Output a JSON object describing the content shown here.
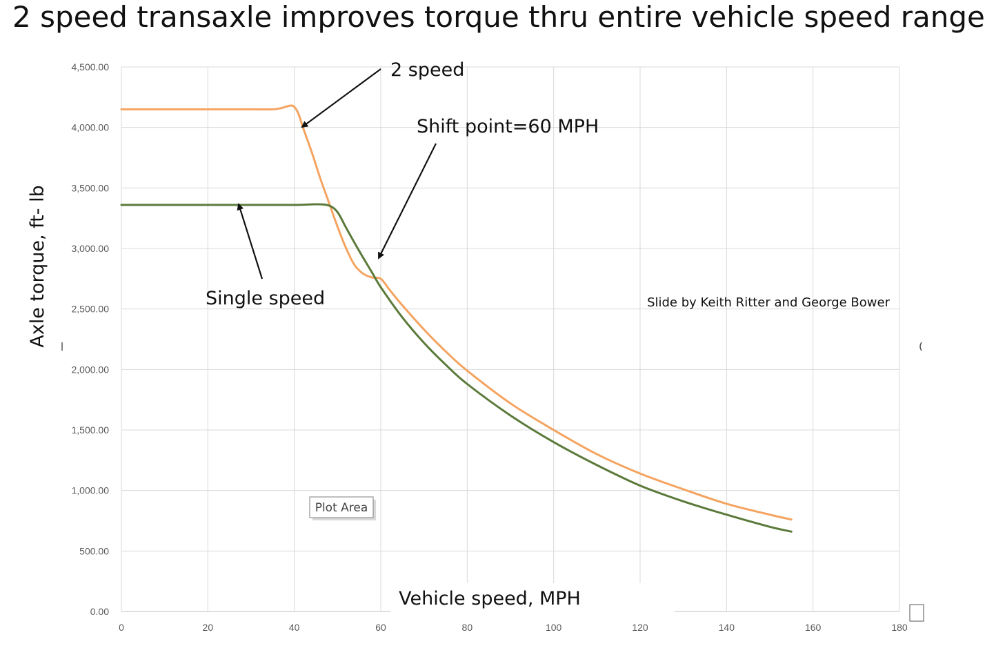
{
  "slide_title": "2 speed transaxle improves torque thru entire vehicle speed range",
  "chart_data": {
    "type": "line",
    "title": "",
    "xlabel": "Vehicle speed, MPH",
    "ylabel": "Axle torque, ft- lb",
    "xlim": [
      0,
      180
    ],
    "ylim": [
      0,
      4500
    ],
    "x_ticks": [
      "0",
      "20",
      "40",
      "60",
      "80",
      "100",
      "120",
      "140",
      "160",
      "180"
    ],
    "y_ticks": [
      "0.00",
      "500.00",
      "1,000.00",
      "1,500.00",
      "2,000.00",
      "2,500.00",
      "3,000.00",
      "3,500.00",
      "4,000.00",
      "4,500.00"
    ],
    "grid": true,
    "series": [
      {
        "color": "#F4A460",
        "x": [
          0,
          10,
          20,
          30,
          35,
          37,
          39,
          40,
          41,
          42,
          44,
          46,
          48,
          50,
          52,
          54,
          56,
          58,
          60,
          62,
          65,
          70,
          75,
          80,
          90,
          100,
          110,
          120,
          130,
          140,
          150,
          155
        ],
        "y": [
          4150,
          4150,
          4150,
          4150,
          4150,
          4160,
          4180,
          4170,
          4110,
          4000,
          3800,
          3580,
          3380,
          3180,
          3000,
          2860,
          2790,
          2760,
          2750,
          2660,
          2530,
          2330,
          2150,
          1990,
          1720,
          1500,
          1300,
          1140,
          1010,
          890,
          800,
          760
        ]
      },
      {
        "color": "#5B7A3A",
        "x": [
          0,
          10,
          20,
          30,
          40,
          45,
          48,
          50,
          52,
          55,
          58,
          60,
          65,
          70,
          75,
          80,
          90,
          100,
          110,
          120,
          130,
          140,
          150,
          155
        ],
        "y": [
          3360,
          3360,
          3360,
          3360,
          3360,
          3365,
          3355,
          3300,
          3170,
          2980,
          2800,
          2680,
          2430,
          2220,
          2040,
          1880,
          1620,
          1400,
          1210,
          1040,
          910,
          800,
          700,
          660
        ]
      }
    ],
    "annotations": {
      "two_speed": "2 speed",
      "shift_point": "Shift point=60 MPH",
      "single_speed": "Single speed",
      "credit": "Slide by Keith Ritter and George Bower",
      "plot_area_tooltip": "Plot Area"
    }
  }
}
